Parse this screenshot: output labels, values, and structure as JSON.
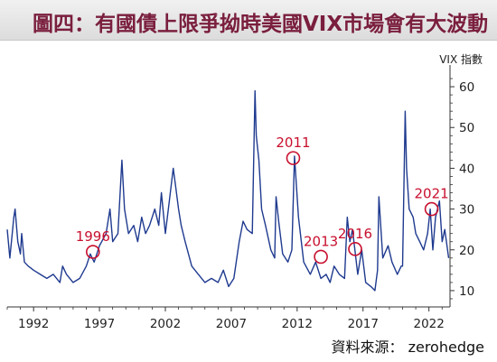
{
  "header": {
    "title": "圖四：有國債上限爭拗時美國VIX市場會有大波動"
  },
  "footer": {
    "source": "資料來源： zerohedge"
  },
  "colors": {
    "title": "#7a1e3e",
    "line": "#1f3a8f",
    "annotation": "#c8102e",
    "axis": "#333333"
  },
  "chart_data": {
    "type": "line",
    "title": "",
    "xlabel": "",
    "ylabel": "VIX 指數",
    "y_axis_side": "right",
    "grid": false,
    "xlim": [
      1990.0,
      2023.6
    ],
    "ylim": [
      6,
      64
    ],
    "x_ticks": [
      {
        "value": 1992,
        "label": "1992"
      },
      {
        "value": 1997,
        "label": "1997"
      },
      {
        "value": 2002,
        "label": "2002"
      },
      {
        "value": 2007,
        "label": "2007"
      },
      {
        "value": 2012,
        "label": "2012"
      },
      {
        "value": 2017,
        "label": "2017"
      },
      {
        "value": 2022,
        "label": "2022"
      }
    ],
    "y_ticks": [
      {
        "value": 10,
        "label": "10"
      },
      {
        "value": 20,
        "label": "20"
      },
      {
        "value": 30,
        "label": "30"
      },
      {
        "value": 40,
        "label": "40"
      },
      {
        "value": 50,
        "label": "50"
      },
      {
        "value": 60,
        "label": "60"
      }
    ],
    "series": [
      {
        "x": [
          1990.0,
          1990.2,
          1990.5,
          1990.6,
          1990.8,
          1991.0,
          1991.1,
          1991.3,
          1991.6,
          1992.0,
          1992.5,
          1993.0,
          1993.5,
          1994.0,
          1994.2,
          1994.5,
          1995.0,
          1995.5,
          1996.0,
          1996.3,
          1996.6,
          1997.0,
          1997.5,
          1997.8,
          1998.0,
          1998.4,
          1998.7,
          1998.9,
          1999.2,
          1999.6,
          1999.9,
          2000.2,
          2000.5,
          2000.8,
          2001.2,
          2001.5,
          2001.7,
          2002.0,
          2002.3,
          2002.6,
          2002.8,
          2003.0,
          2003.2,
          2003.5,
          2004.0,
          2004.5,
          2005.0,
          2005.5,
          2006.0,
          2006.4,
          2006.8,
          2007.2,
          2007.6,
          2007.9,
          2008.2,
          2008.6,
          2008.8,
          2008.9,
          2009.1,
          2009.3,
          2009.6,
          2010.0,
          2010.3,
          2010.4,
          2010.6,
          2010.9,
          2011.3,
          2011.6,
          2011.8,
          2012.1,
          2012.5,
          2013.0,
          2013.4,
          2013.8,
          2014.2,
          2014.5,
          2014.8,
          2015.2,
          2015.6,
          2015.8,
          2016.0,
          2016.2,
          2016.6,
          2016.9,
          2017.2,
          2017.6,
          2017.9,
          2018.1,
          2018.2,
          2018.5,
          2018.9,
          2019.2,
          2019.6,
          2019.9,
          2020.0,
          2020.2,
          2020.3,
          2020.5,
          2020.8,
          2021.0,
          2021.3,
          2021.6,
          2021.9,
          2022.1,
          2022.3,
          2022.5,
          2022.8,
          2023.0,
          2023.2,
          2023.5
        ],
        "values": [
          25,
          18,
          28,
          30,
          22,
          19,
          24,
          17,
          16,
          15,
          14,
          13,
          14,
          12,
          16,
          14,
          12,
          13,
          16,
          19,
          17,
          21,
          24,
          30,
          22,
          24,
          42,
          30,
          24,
          26,
          22,
          28,
          24,
          26,
          30,
          26,
          34,
          24,
          32,
          40,
          35,
          30,
          26,
          22,
          16,
          14,
          12,
          13,
          12,
          15,
          11,
          13,
          22,
          27,
          25,
          24,
          59,
          48,
          42,
          30,
          26,
          20,
          18,
          33,
          27,
          19,
          17,
          20,
          43,
          28,
          17,
          14,
          17,
          13,
          14,
          12,
          16,
          14,
          13,
          28,
          22,
          25,
          14,
          20,
          12,
          11,
          10,
          15,
          33,
          18,
          21,
          17,
          14,
          16,
          16,
          54,
          40,
          30,
          28,
          24,
          22,
          20,
          24,
          30,
          20,
          28,
          32,
          22,
          25,
          18
        ]
      }
    ],
    "annotations": [
      {
        "label": "1996",
        "x": 1996.5,
        "y": 19.5
      },
      {
        "label": "2011",
        "x": 2011.7,
        "y": 42.5
      },
      {
        "label": "2013",
        "x": 2013.8,
        "y": 18.3
      },
      {
        "label": "2016",
        "x": 2016.4,
        "y": 20.2
      },
      {
        "label": "2021",
        "x": 2022.2,
        "y": 30.0
      }
    ]
  }
}
